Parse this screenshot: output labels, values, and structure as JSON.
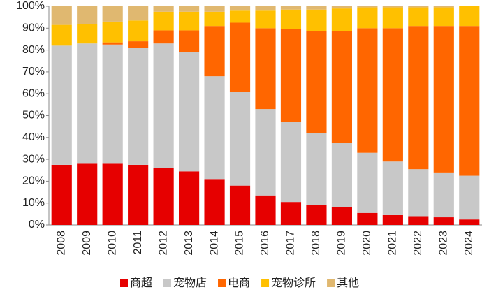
{
  "chart_data": {
    "type": "stacked_bar",
    "categories": [
      "2008",
      "2009",
      "2010",
      "2011",
      "2012",
      "2013",
      "2014",
      "2015",
      "2016",
      "2017",
      "2018",
      "2019",
      "2020",
      "2021",
      "2022",
      "2023",
      "2024"
    ],
    "series": [
      {
        "name": "商超",
        "color": "#e60000",
        "values": [
          27.5,
          28,
          28,
          27.5,
          26,
          24.5,
          21,
          18,
          13.5,
          10.5,
          9,
          8,
          5.5,
          4.5,
          4,
          3.5,
          2.5
        ]
      },
      {
        "name": "宠物店",
        "color": "#c8c8c8",
        "values": [
          54.5,
          55,
          54.5,
          53.5,
          57,
          54.5,
          47,
          43,
          39.5,
          36.5,
          33,
          29.5,
          27.5,
          24.5,
          21.5,
          20.5,
          20
        ]
      },
      {
        "name": "电商",
        "color": "#ff6600",
        "values": [
          0,
          0,
          1,
          3,
          6,
          10,
          23,
          31.5,
          37,
          42.5,
          46.5,
          51,
          57,
          61,
          65.5,
          67,
          68.5
        ]
      },
      {
        "name": "宠物诊所",
        "color": "#ffc000",
        "values": [
          9.5,
          9,
          9.5,
          9.5,
          8.5,
          8.5,
          6.5,
          5.5,
          8,
          9,
          10,
          10.5,
          9.5,
          9.5,
          8.5,
          8.5,
          9
        ]
      },
      {
        "name": "其他",
        "color": "#e0b870",
        "values": [
          8.5,
          8,
          7,
          6.5,
          2.5,
          2.5,
          2.5,
          2,
          2,
          1.5,
          1.5,
          1,
          0.5,
          0.5,
          0.5,
          0.5,
          0
        ]
      }
    ],
    "ylim": [
      0,
      100
    ],
    "yticks": [
      {
        "value": 0,
        "label": "0%"
      },
      {
        "value": 10,
        "label": "10%"
      },
      {
        "value": 20,
        "label": "20%"
      },
      {
        "value": 30,
        "label": "30%"
      },
      {
        "value": 40,
        "label": "40%"
      },
      {
        "value": 50,
        "label": "50%"
      },
      {
        "value": 60,
        "label": "60%"
      },
      {
        "value": 70,
        "label": "70%"
      },
      {
        "value": 80,
        "label": "80%"
      },
      {
        "value": 90,
        "label": "90%"
      },
      {
        "value": 100,
        "label": "100%"
      }
    ]
  }
}
